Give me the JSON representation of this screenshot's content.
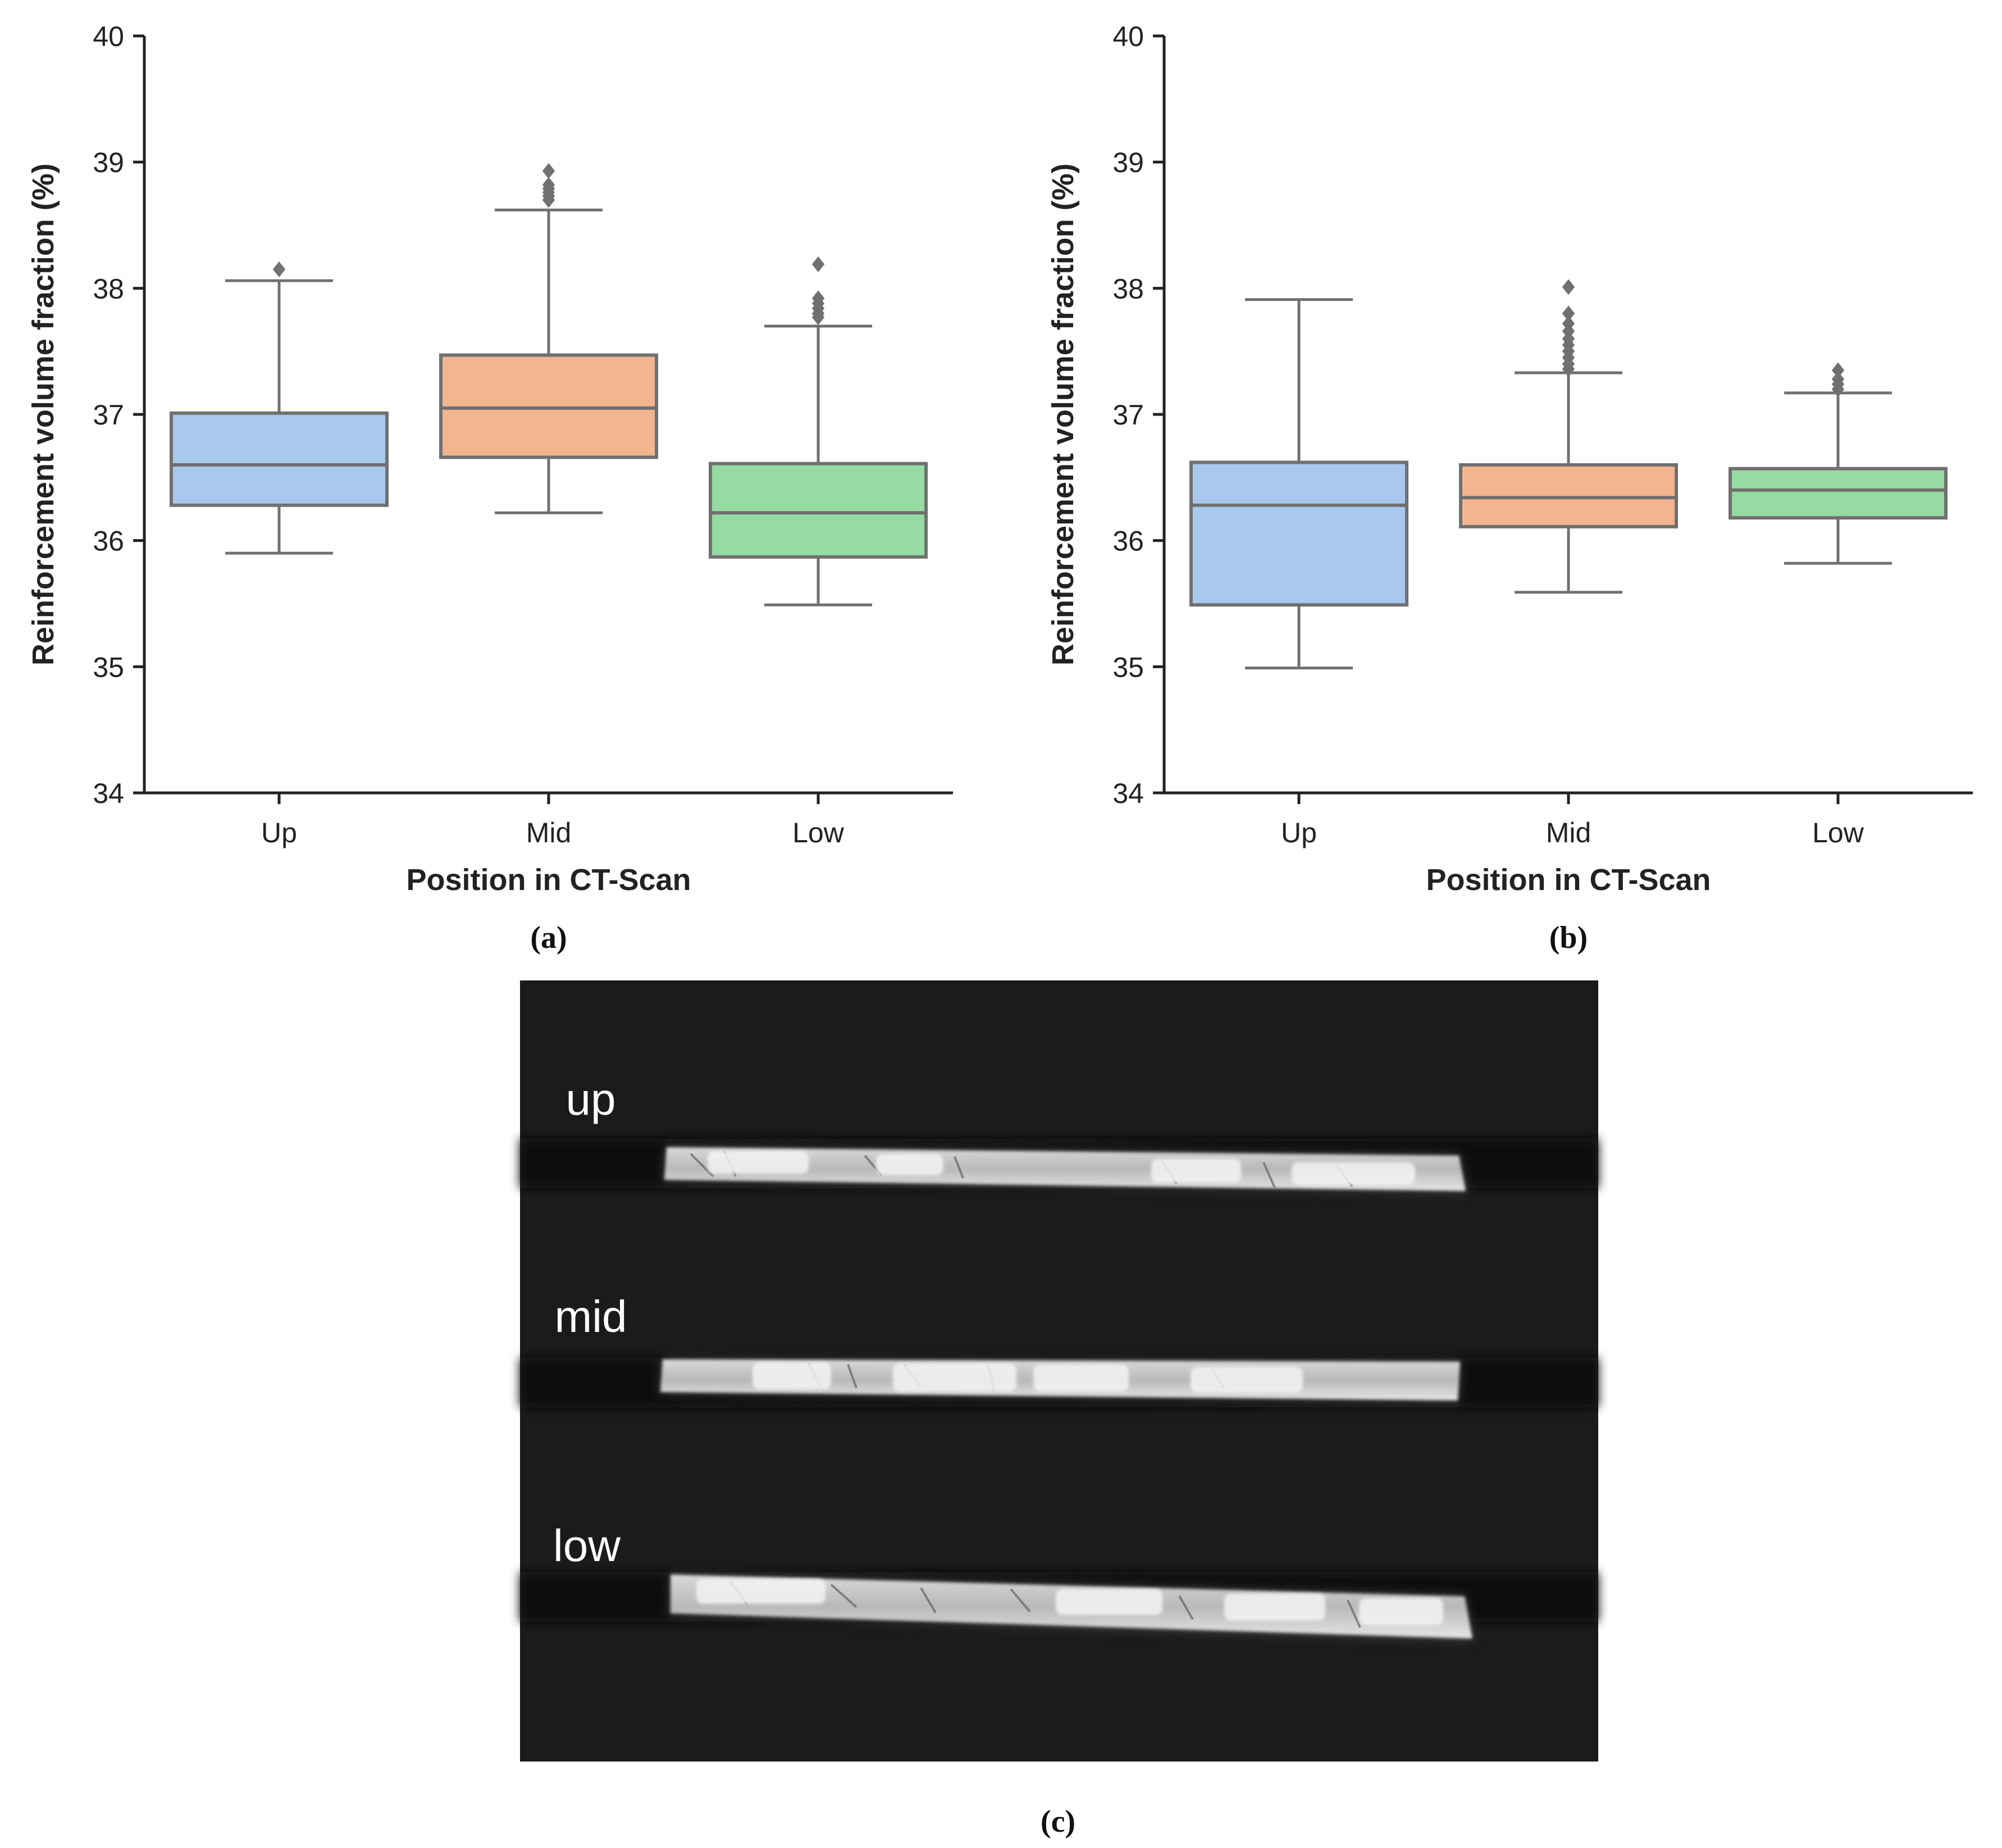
{
  "chart_data": [
    {
      "panel_label": "(a)",
      "type": "box",
      "xlabel": "Position in CT-Scan",
      "ylabel": "Reinforcement volume fraction (%)",
      "ylim": [
        34,
        40
      ],
      "yticks": [
        "34",
        "35",
        "36",
        "37",
        "38",
        "39",
        "40"
      ],
      "categories": [
        "Up",
        "Mid",
        "Low"
      ],
      "boxes": [
        {
          "category": "Up",
          "color": "#a8c8ee",
          "whisker_low": 35.9,
          "q1": 36.28,
          "median": 36.6,
          "q3": 37.01,
          "whisker_high": 38.06,
          "outliers": [
            38.15
          ]
        },
        {
          "category": "Mid",
          "color": "#f3b58f",
          "whisker_low": 36.22,
          "q1": 36.66,
          "median": 37.05,
          "q3": 37.47,
          "whisker_high": 38.62,
          "outliers": [
            38.7,
            38.73,
            38.76,
            38.79,
            38.82,
            38.93
          ]
        },
        {
          "category": "Low",
          "color": "#96dba2",
          "whisker_low": 35.49,
          "q1": 35.87,
          "median": 36.22,
          "q3": 36.61,
          "whisker_high": 37.7,
          "outliers": [
            37.77,
            37.8,
            37.84,
            37.88,
            37.92,
            38.19
          ]
        }
      ],
      "grid": false
    },
    {
      "panel_label": "(b)",
      "type": "box",
      "xlabel": "Position in CT-Scan",
      "ylabel": "Reinforcement volume fraction (%)",
      "ylim": [
        34,
        40
      ],
      "yticks": [
        "34",
        "35",
        "36",
        "37",
        "38",
        "39",
        "40"
      ],
      "categories": [
        "Up",
        "Mid",
        "Low"
      ],
      "boxes": [
        {
          "category": "Up",
          "color": "#a8c8ee",
          "whisker_low": 34.99,
          "q1": 35.49,
          "median": 36.28,
          "q3": 36.62,
          "whisker_high": 37.91,
          "outliers": []
        },
        {
          "category": "Mid",
          "color": "#f3b58f",
          "whisker_low": 35.59,
          "q1": 36.11,
          "median": 36.34,
          "q3": 36.6,
          "whisker_high": 37.33,
          "outliers": [
            37.36,
            37.4,
            37.45,
            37.5,
            37.55,
            37.6,
            37.66,
            37.72,
            37.8,
            38.01
          ]
        },
        {
          "category": "Low",
          "color": "#96dba2",
          "whisker_low": 35.82,
          "q1": 36.18,
          "median": 36.4,
          "q3": 36.57,
          "whisker_high": 37.17,
          "outliers": [
            37.2,
            37.24,
            37.28,
            37.35
          ]
        }
      ],
      "grid": false
    }
  ],
  "ct_image": {
    "panel_label": "(c)",
    "labels": [
      "up",
      "mid",
      "low"
    ]
  }
}
